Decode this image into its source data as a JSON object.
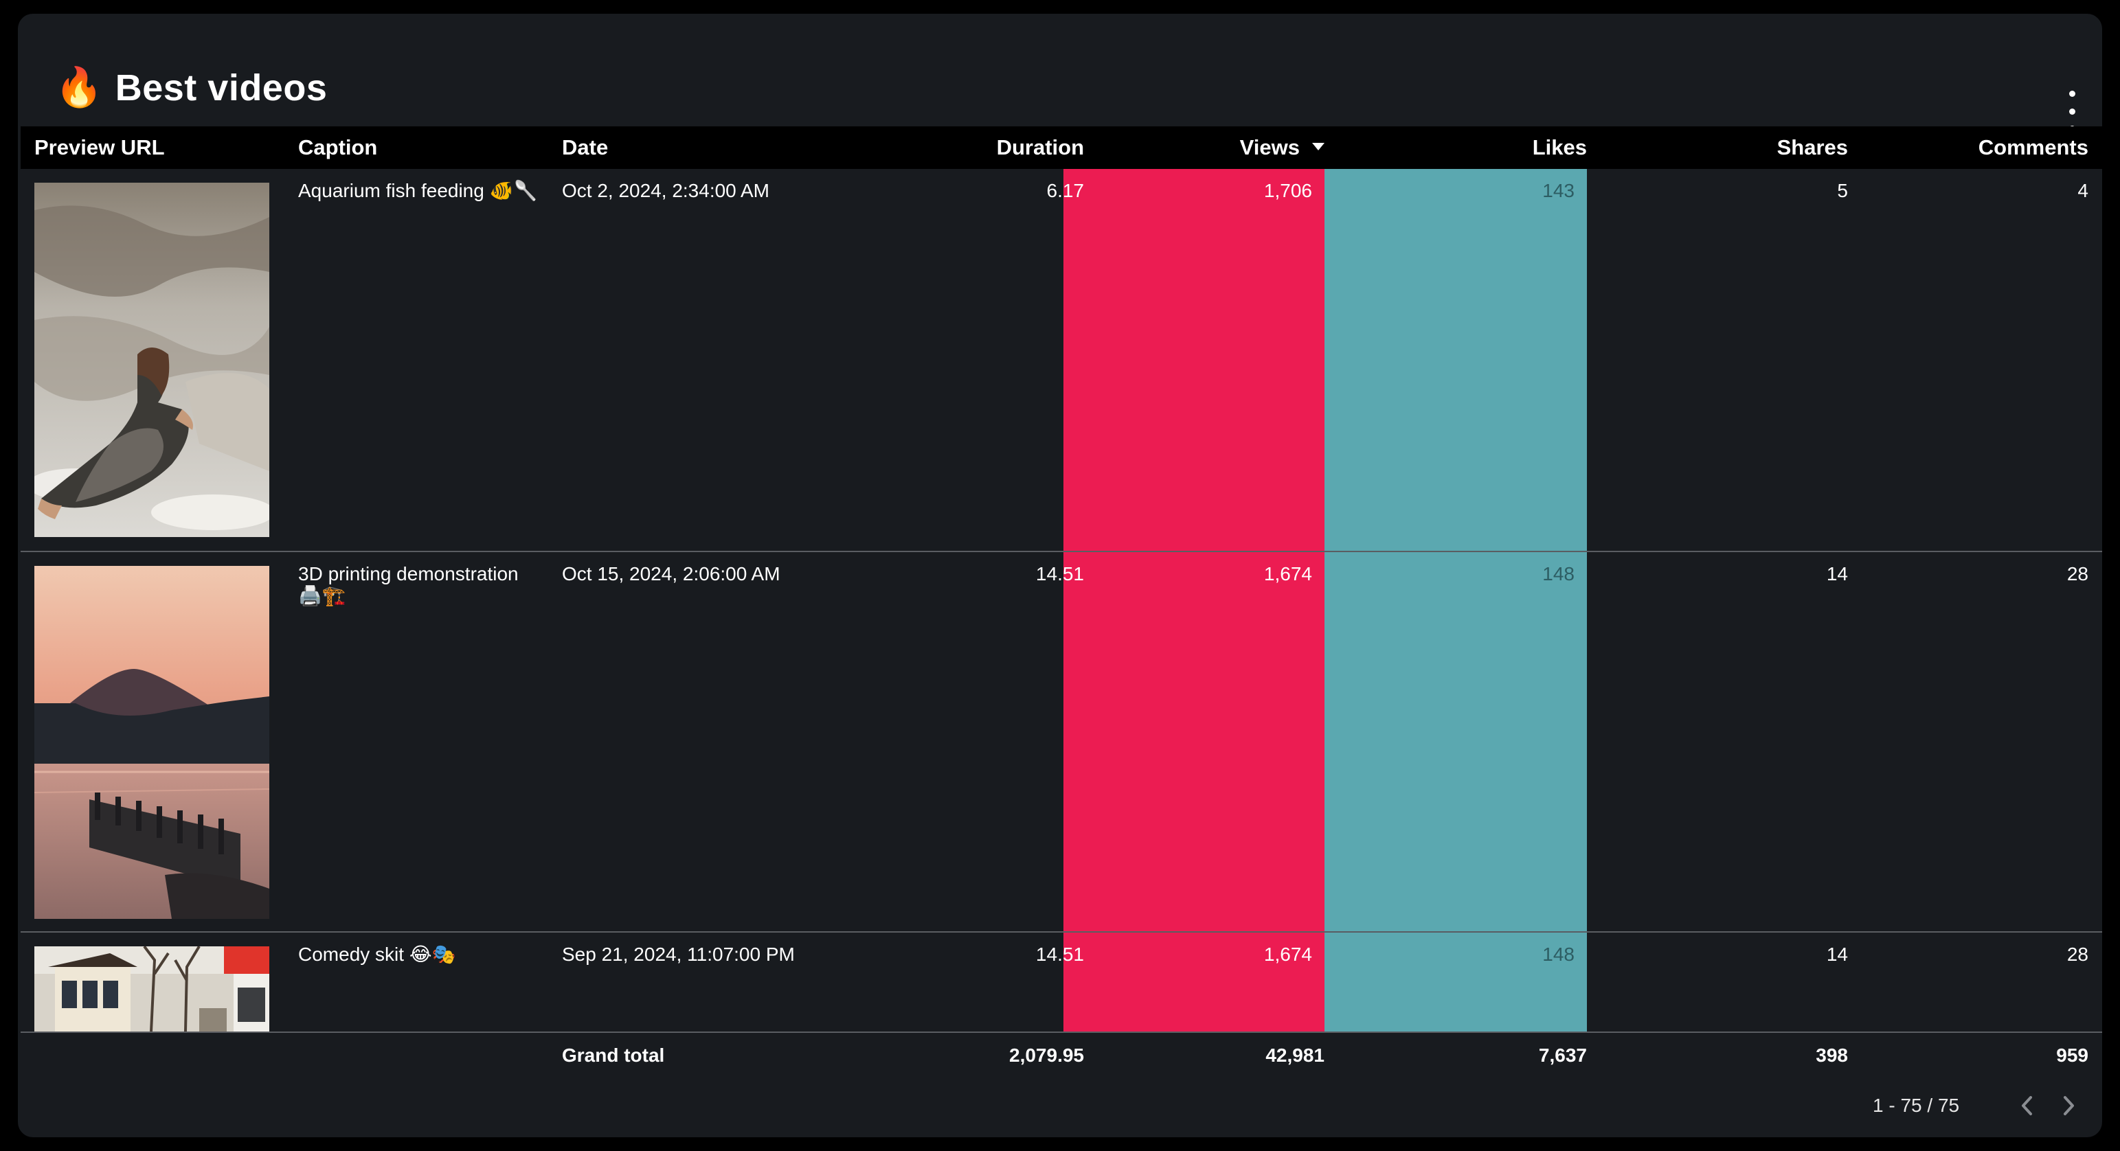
{
  "widget": {
    "icon": "fire-icon",
    "title": "Best videos"
  },
  "table": {
    "columns": [
      "Preview URL",
      "Caption",
      "Date",
      "Duration",
      "Views",
      "Likes",
      "Shares",
      "Comments"
    ],
    "sorted_column": "Views",
    "sort_direction": "descending",
    "rows": [
      {
        "thumbnail": "woman-on-rocks-photo",
        "caption": "Aquarium fish feeding 🐠🥄",
        "date": "Oct 2, 2024, 2:34:00 AM",
        "duration": "6.17",
        "views": "1,706",
        "likes": "143",
        "shares": "5",
        "comments": "4"
      },
      {
        "thumbnail": "mountain-lake-sunset-photo",
        "caption": "3D printing demonstration 🖨️🏗️",
        "date": "Oct 15, 2024, 2:06:00 AM",
        "duration": "14.51",
        "views": "1,674",
        "likes": "148",
        "shares": "14",
        "comments": "28"
      },
      {
        "thumbnail": "street-kiosk-photo",
        "caption": "Comedy skit 😂🎭",
        "date": "Sep 21, 2024, 11:07:00 PM",
        "duration": "14.51",
        "views": "1,674",
        "likes": "148",
        "shares": "14",
        "comments": "28"
      }
    ],
    "totals": {
      "label": "Grand total",
      "duration": "2,079.95",
      "views": "42,981",
      "likes": "7,637",
      "shares": "398",
      "comments": "959"
    }
  },
  "pagination": {
    "range": "1 - 75 / 75"
  },
  "colors": {
    "views_highlight": "#ec1c52",
    "likes_highlight": "#5ba8b0",
    "card_background": "#181b1f",
    "header_background": "#000000"
  }
}
